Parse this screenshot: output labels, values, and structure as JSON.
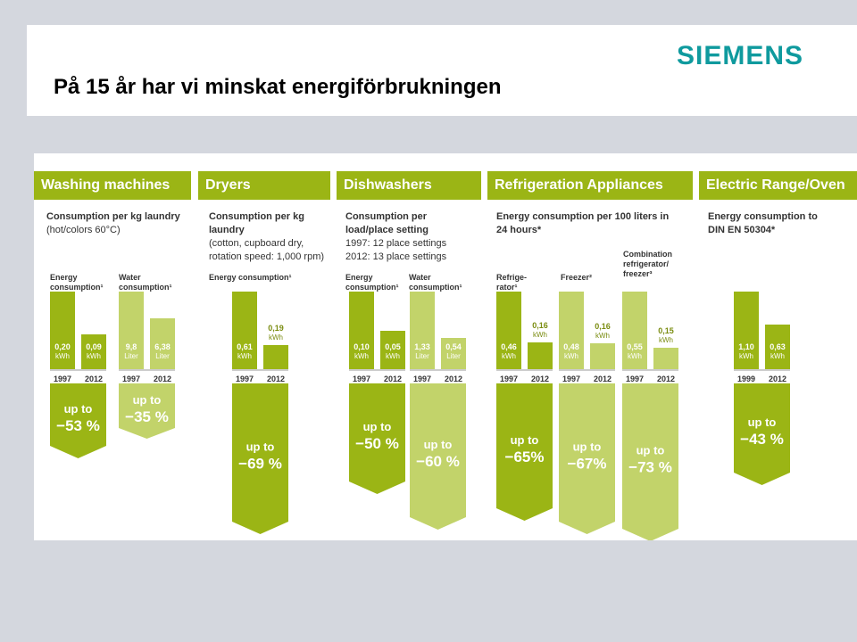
{
  "slide": {
    "title": "På 15 år har vi minskat energiförbrukningen",
    "logo": "SIEMENS"
  },
  "colors": {
    "dark_green": "#9bb515",
    "light_green": "#c2d36a",
    "header_green": "#9bb515"
  },
  "sections": [
    {
      "name": "Washing machines",
      "desc_title": "Consumption per kg laundry",
      "desc_lines": [
        "(hot/colors 60°C)"
      ],
      "metrics": [
        {
          "label": "Energy consumption¹"
        },
        {
          "label": "Water consumption¹"
        }
      ]
    },
    {
      "name": "Dryers",
      "desc_title": "Consumption per kg laundry",
      "desc_lines": [
        "(cotton, cupboard dry,",
        "rotation speed: 1,000 rpm)"
      ],
      "metrics": [
        {
          "label": "Energy consumption¹"
        }
      ]
    },
    {
      "name": "Dishwashers",
      "desc_title": "Consumption per load/place setting",
      "desc_lines": [
        "1997: 12 place settings",
        "2012: 13 place settings"
      ],
      "metrics": [
        {
          "label": "Energy consumption¹"
        },
        {
          "label": "Water consumption¹"
        }
      ]
    },
    {
      "name": "Refrigeration Appliances",
      "desc_title": "Energy consumption per 100 liters in 24 hours*",
      "desc_lines": [],
      "metrics": [
        {
          "label": "Refrige-rator¹"
        },
        {
          "label": "Freezer²"
        },
        {
          "label": "Combination refrigerator/ freezer³"
        }
      ]
    },
    {
      "name": "Electric Range/Oven",
      "desc_title": "Energy consumption to DIN EN 50304*",
      "desc_lines": [],
      "metrics": [
        {
          "label": ""
        }
      ]
    }
  ],
  "chart_data": {
    "type": "bar",
    "groups": [
      {
        "section": "Washing machines",
        "metric": "Energy consumption",
        "years": [
          "1997",
          "2012"
        ],
        "values": [
          0.2,
          0.09
        ],
        "value_labels": [
          "0,20",
          "0,09"
        ],
        "unit": "kWh",
        "reduction": "−53 %",
        "reduction_prefix": "up to"
      },
      {
        "section": "Washing machines",
        "metric": "Water consumption",
        "years": [
          "1997",
          "2012"
        ],
        "values": [
          9.8,
          6.38
        ],
        "value_labels": [
          "9,8",
          "6,38"
        ],
        "unit": "Liter",
        "reduction": "−35 %",
        "reduction_prefix": "up to"
      },
      {
        "section": "Dryers",
        "metric": "Energy consumption",
        "years": [
          "1997",
          "2012"
        ],
        "values": [
          0.61,
          0.19
        ],
        "value_labels": [
          "0,61",
          "0,19"
        ],
        "unit": "kWh",
        "reduction": "−69 %",
        "reduction_prefix": "up to"
      },
      {
        "section": "Dishwashers",
        "metric": "Energy consumption",
        "years": [
          "1997",
          "2012"
        ],
        "values": [
          0.1,
          0.05
        ],
        "value_labels": [
          "0,10",
          "0,05"
        ],
        "unit": "kWh",
        "reduction": "−50 %",
        "reduction_prefix": "up to"
      },
      {
        "section": "Dishwashers",
        "metric": "Water consumption",
        "years": [
          "1997",
          "2012"
        ],
        "values": [
          1.33,
          0.54
        ],
        "value_labels": [
          "1,33",
          "0,54"
        ],
        "unit": "Liter",
        "reduction": "−60 %",
        "reduction_prefix": "up to"
      },
      {
        "section": "Refrigeration Appliances",
        "metric": "Refrigerator",
        "years": [
          "1997",
          "2012"
        ],
        "values": [
          0.46,
          0.16
        ],
        "value_labels": [
          "0,46",
          "0,16"
        ],
        "unit": "kWh",
        "reduction": "−65%",
        "reduction_prefix": "up to"
      },
      {
        "section": "Refrigeration Appliances",
        "metric": "Freezer",
        "years": [
          "1997",
          "2012"
        ],
        "values": [
          0.48,
          0.16
        ],
        "value_labels": [
          "0,48",
          "0,16"
        ],
        "unit": "kWh",
        "reduction": "−67%",
        "reduction_prefix": "up to"
      },
      {
        "section": "Refrigeration Appliances",
        "metric": "Combination refrigerator/freezer",
        "years": [
          "1997",
          "2012"
        ],
        "values": [
          0.55,
          0.15
        ],
        "value_labels": [
          "0,55",
          "0,15"
        ],
        "unit": "kWh",
        "reduction": "−73 %",
        "reduction_prefix": "up to"
      },
      {
        "section": "Electric Range/Oven",
        "metric": "Energy consumption",
        "years": [
          "1999",
          "2012"
        ],
        "values": [
          1.1,
          0.63
        ],
        "value_labels": [
          "1,10",
          "0,63"
        ],
        "unit": "kWh",
        "reduction": "−43 %",
        "reduction_prefix": "up to"
      }
    ]
  }
}
